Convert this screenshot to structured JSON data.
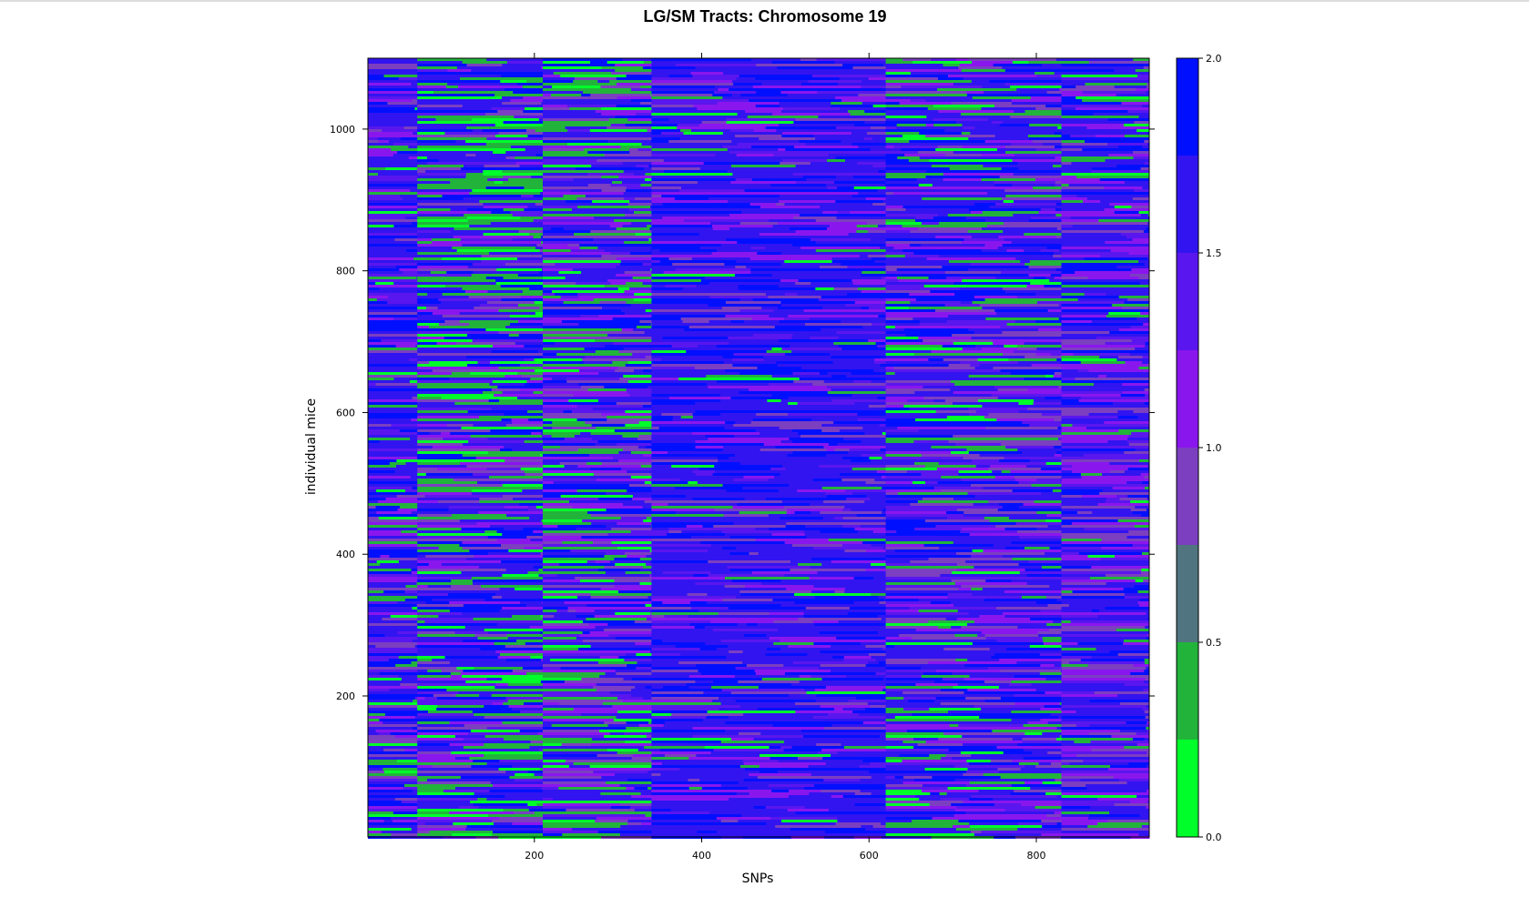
{
  "chart_data": {
    "type": "heatmap",
    "title": "LG/SM Tracts: Chromosome 19",
    "xlabel": "SNPs",
    "ylabel": "individual mice",
    "xlim": [
      1,
      935
    ],
    "ylim": [
      1,
      1100
    ],
    "x_ticks": [
      200,
      400,
      600,
      800
    ],
    "y_ticks": [
      200,
      400,
      600,
      800,
      1000
    ],
    "colorbar": {
      "range": [
        0.0,
        2.0
      ],
      "ticks": [
        "0.0",
        "0.5",
        "1.0",
        "1.5",
        "2.0"
      ],
      "levels": [
        {
          "from": 0.0,
          "to": 0.25,
          "color": "#00ff2a"
        },
        {
          "from": 0.25,
          "to": 0.5,
          "color": "#22b33b"
        },
        {
          "from": 0.5,
          "to": 0.75,
          "color": "#507580"
        },
        {
          "from": 0.75,
          "to": 1.0,
          "color": "#7b3fc0"
        },
        {
          "from": 1.0,
          "to": 1.25,
          "color": "#8a16ee"
        },
        {
          "from": 1.25,
          "to": 1.5,
          "color": "#5a16ee"
        },
        {
          "from": 1.5,
          "to": 1.75,
          "color": "#3214f0"
        },
        {
          "from": 1.75,
          "to": 2.0,
          "color": "#0010ff"
        }
      ]
    },
    "column_regions": [
      {
        "x_start": 1,
        "x_end": 60,
        "dominant": "blue",
        "mix": {
          "blue": 0.55,
          "purple": 0.3,
          "green": 0.15
        }
      },
      {
        "x_start": 60,
        "x_end": 210,
        "dominant": "mixed",
        "mix": {
          "blue": 0.4,
          "purple": 0.3,
          "green": 0.3
        }
      },
      {
        "x_start": 210,
        "x_end": 340,
        "dominant": "mixed",
        "mix": {
          "blue": 0.35,
          "purple": 0.4,
          "green": 0.25
        }
      },
      {
        "x_start": 340,
        "x_end": 620,
        "dominant": "blue",
        "mix": {
          "blue": 0.7,
          "purple": 0.25,
          "green": 0.05
        }
      },
      {
        "x_start": 620,
        "x_end": 830,
        "dominant": "mixed",
        "mix": {
          "blue": 0.5,
          "purple": 0.35,
          "green": 0.15
        }
      },
      {
        "x_start": 830,
        "x_end": 935,
        "dominant": "mixed",
        "mix": {
          "blue": 0.5,
          "purple": 0.4,
          "green": 0.1
        }
      }
    ]
  }
}
